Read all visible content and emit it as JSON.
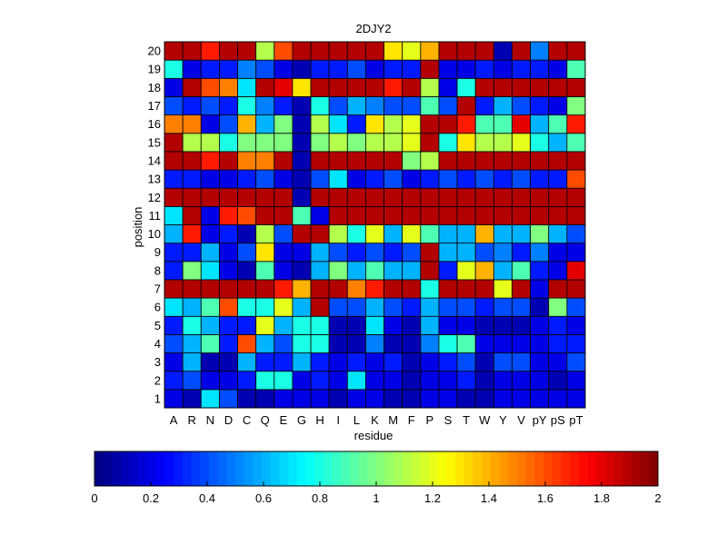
{
  "chart_data": {
    "type": "heatmap",
    "title": "2DJY2",
    "xlabel": "residue",
    "ylabel": "position",
    "x_categories": [
      "A",
      "R",
      "N",
      "D",
      "C",
      "Q",
      "E",
      "G",
      "H",
      "I",
      "L",
      "K",
      "M",
      "F",
      "P",
      "S",
      "T",
      "W",
      "Y",
      "V",
      "pY",
      "pS",
      "pT"
    ],
    "y_categories": [
      "1",
      "2",
      "3",
      "4",
      "5",
      "6",
      "7",
      "8",
      "9",
      "10",
      "11",
      "12",
      "13",
      "14",
      "15",
      "16",
      "17",
      "18",
      "19",
      "20"
    ],
    "colormap": "jet",
    "clim": [
      0,
      2
    ],
    "colorbar": {
      "orientation": "horizontal",
      "placement": "bottom",
      "ticks": [
        0,
        0.2,
        0.4,
        0.6,
        0.8,
        1,
        1.2,
        1.4,
        1.6,
        1.8,
        2
      ],
      "tick_labels": [
        "0",
        "0.2",
        "0.4",
        "0.6",
        "0.8",
        "1",
        "1.2",
        "1.4",
        "1.6",
        "1.8",
        "2"
      ]
    },
    "grid": true,
    "values": [
      [
        0.2,
        0.1,
        0.7,
        0.4,
        0.1,
        0.1,
        0.2,
        0.2,
        0.2,
        0.1,
        0.2,
        0.2,
        0.1,
        0.1,
        0.2,
        0.2,
        0.1,
        0.1,
        0.2,
        0.2,
        0.2,
        0.2,
        0.2
      ],
      [
        0.3,
        0.4,
        0.2,
        0.2,
        0.3,
        0.8,
        0.8,
        0.2,
        0.3,
        0.2,
        0.7,
        0.2,
        0.2,
        0.1,
        0.2,
        0.2,
        0.3,
        0.1,
        0.2,
        0.2,
        0.2,
        0.1,
        0.2
      ],
      [
        0.2,
        0.6,
        0.1,
        0.1,
        0.6,
        0.3,
        0.3,
        0.6,
        0.3,
        0.2,
        0.3,
        0.2,
        0.3,
        0.1,
        0.2,
        0.3,
        0.4,
        0.1,
        0.4,
        0.4,
        0.2,
        0.2,
        0.4
      ],
      [
        0.4,
        0.6,
        0.9,
        0.3,
        1.6,
        0.6,
        0.4,
        0.8,
        0.8,
        0.1,
        0.1,
        0.5,
        0.1,
        0.1,
        0.5,
        0.8,
        0.9,
        0.2,
        0.2,
        0.2,
        0.2,
        0.3,
        0.3
      ],
      [
        0.3,
        0.8,
        0.6,
        0.3,
        0.3,
        1.2,
        0.6,
        0.8,
        0.8,
        0.1,
        0.1,
        0.7,
        0.2,
        0.1,
        0.6,
        0.2,
        0.2,
        0.1,
        0.1,
        0.1,
        0.2,
        0.3,
        0.2
      ],
      [
        0.7,
        0.6,
        0.9,
        1.6,
        0.8,
        0.8,
        1.2,
        0.6,
        1.9,
        0.4,
        0.4,
        0.6,
        0.4,
        0.3,
        0.6,
        0.4,
        0.4,
        0.3,
        0.4,
        0.4,
        0.1,
        1.0,
        0.4
      ],
      [
        1.9,
        1.9,
        1.9,
        1.9,
        1.9,
        1.9,
        1.7,
        1.4,
        1.9,
        1.9,
        1.5,
        1.7,
        1.9,
        1.9,
        0.8,
        1.9,
        1.9,
        1.9,
        1.2,
        1.9,
        0.2,
        1.9,
        1.9
      ],
      [
        0.3,
        1.0,
        0.7,
        0.2,
        0.1,
        0.9,
        0.2,
        0.1,
        0.6,
        1.0,
        0.6,
        0.9,
        0.6,
        0.6,
        1.9,
        0.3,
        1.2,
        1.4,
        0.6,
        0.9,
        0.3,
        0.2,
        1.8
      ],
      [
        0.3,
        0.3,
        0.6,
        0.2,
        0.4,
        1.3,
        0.2,
        0.2,
        0.6,
        0.4,
        0.3,
        0.4,
        0.3,
        0.4,
        1.9,
        0.6,
        0.6,
        0.4,
        0.5,
        0.3,
        0.5,
        0.2,
        0.2
      ],
      [
        0.6,
        1.7,
        0.2,
        0.3,
        0.1,
        1.1,
        0.4,
        1.9,
        1.9,
        1.1,
        0.8,
        1.2,
        0.6,
        1.2,
        0.9,
        0.6,
        0.6,
        1.4,
        0.6,
        0.6,
        1.0,
        0.6,
        0.4
      ],
      [
        0.7,
        1.9,
        0.2,
        1.7,
        1.6,
        1.9,
        1.9,
        0.9,
        0.2,
        1.9,
        1.9,
        1.9,
        1.9,
        1.9,
        1.9,
        1.9,
        1.9,
        1.9,
        1.9,
        1.9,
        1.9,
        1.9,
        1.9
      ],
      [
        1.9,
        1.9,
        1.9,
        1.9,
        1.9,
        1.9,
        1.9,
        0.1,
        1.9,
        1.9,
        1.9,
        1.9,
        1.9,
        1.9,
        1.9,
        1.9,
        1.9,
        1.9,
        1.9,
        1.9,
        1.9,
        1.9,
        1.9
      ],
      [
        0.3,
        0.3,
        0.2,
        0.2,
        0.3,
        0.4,
        0.2,
        0.1,
        0.4,
        0.7,
        0.2,
        0.3,
        0.4,
        0.2,
        0.3,
        0.4,
        0.3,
        0.4,
        0.3,
        0.4,
        0.3,
        0.3,
        1.6
      ],
      [
        1.9,
        1.9,
        1.7,
        1.9,
        1.5,
        1.5,
        1.9,
        0.1,
        1.9,
        1.9,
        1.9,
        1.9,
        1.9,
        1.0,
        1.1,
        1.9,
        1.9,
        1.9,
        1.9,
        1.9,
        1.9,
        1.9,
        1.9
      ],
      [
        1.9,
        1.1,
        1.1,
        0.8,
        1.0,
        1.0,
        1.0,
        0.1,
        1.0,
        1.1,
        1.0,
        1.1,
        1.1,
        1.2,
        1.9,
        0.8,
        1.3,
        1.1,
        1.1,
        1.2,
        0.8,
        0.6,
        0.9
      ],
      [
        1.5,
        1.5,
        0.2,
        0.4,
        1.4,
        0.6,
        1.0,
        0.1,
        1.1,
        0.7,
        0.3,
        1.3,
        1.1,
        1.2,
        1.9,
        1.9,
        1.7,
        0.9,
        0.9,
        1.8,
        0.6,
        0.9,
        1.7
      ],
      [
        0.4,
        0.3,
        0.4,
        0.3,
        0.8,
        0.5,
        0.3,
        0.1,
        0.8,
        0.4,
        0.6,
        0.5,
        0.4,
        0.4,
        0.9,
        0.4,
        1.9,
        0.3,
        0.6,
        0.4,
        0.3,
        0.2,
        1.0
      ],
      [
        0.2,
        1.9,
        1.6,
        1.5,
        0.7,
        1.9,
        1.8,
        1.3,
        1.9,
        1.9,
        1.9,
        1.9,
        1.7,
        1.9,
        1.1,
        0.2,
        0.8,
        1.9,
        1.9,
        1.9,
        1.9,
        1.9,
        1.9
      ],
      [
        0.8,
        0.2,
        0.3,
        0.3,
        0.5,
        0.4,
        0.2,
        0.1,
        0.3,
        0.3,
        0.4,
        0.2,
        0.3,
        0.3,
        1.9,
        0.2,
        0.2,
        0.3,
        0.2,
        0.3,
        0.3,
        0.2,
        0.9
      ],
      [
        1.9,
        1.9,
        1.7,
        1.9,
        1.9,
        1.1,
        1.6,
        1.9,
        1.9,
        1.9,
        1.9,
        1.9,
        1.3,
        1.2,
        1.4,
        1.9,
        1.9,
        1.9,
        0.1,
        1.9,
        0.5,
        1.9,
        1.9
      ]
    ]
  }
}
